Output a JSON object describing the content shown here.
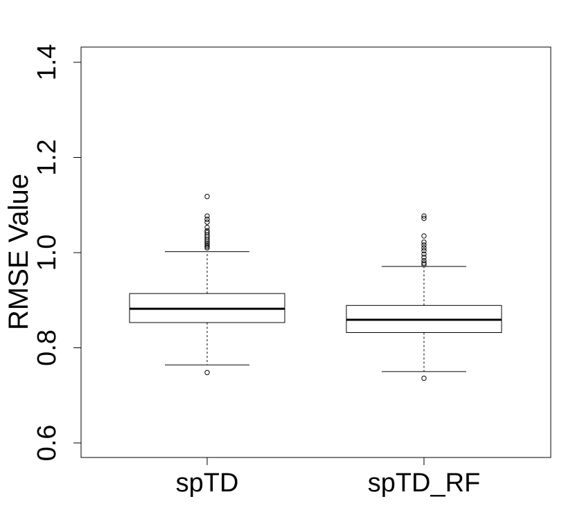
{
  "chart_data": {
    "type": "boxplot",
    "title": "",
    "xlabel": "",
    "ylabel": "RMSE  Value",
    "ylim": [
      0.57,
      1.43
    ],
    "yticks": [
      0.6,
      0.8,
      1.0,
      1.2,
      1.4
    ],
    "ytick_labels": [
      "0.6",
      "0.8",
      "1.0",
      "1.2",
      "1.4"
    ],
    "grid": false,
    "legend": "none",
    "categories": [
      "spTD",
      "spTD_RF"
    ],
    "boxes": [
      {
        "name": "spTD",
        "whisker_low": 0.764,
        "q1": 0.853,
        "median": 0.882,
        "q3": 0.914,
        "whisker_high": 1.002,
        "outliers": [
          0.748,
          1.01,
          1.013,
          1.016,
          1.02,
          1.024,
          1.028,
          1.033,
          1.037,
          1.042,
          1.046,
          1.053,
          1.064,
          1.07,
          1.077,
          1.118
        ]
      },
      {
        "name": "spTD_RF",
        "whisker_low": 0.75,
        "q1": 0.832,
        "median": 0.859,
        "q3": 0.889,
        "whisker_high": 0.971,
        "outliers": [
          0.736,
          0.975,
          0.978,
          0.983,
          0.99,
          0.997,
          1.004,
          1.01,
          1.016,
          1.022,
          1.035,
          1.072,
          1.077
        ]
      }
    ]
  }
}
